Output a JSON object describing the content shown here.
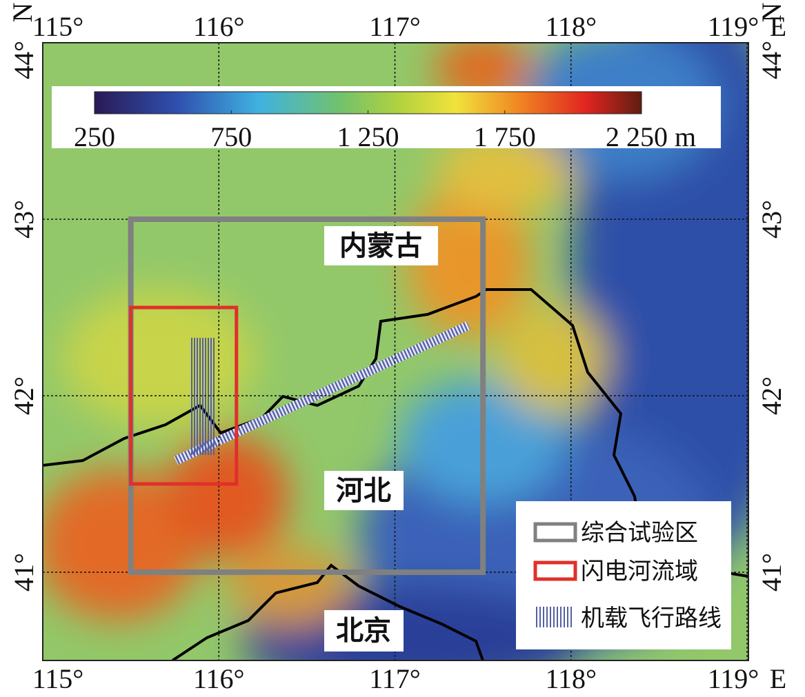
{
  "map": {
    "xlim": [
      115,
      119
    ],
    "ylim": [
      40.5,
      44
    ],
    "xticks": [
      {
        "value": 115,
        "label": "115°"
      },
      {
        "value": 116,
        "label": "116°"
      },
      {
        "value": 117,
        "label": "117°"
      },
      {
        "value": 118,
        "label": "118°"
      },
      {
        "value": 119,
        "label": "119°"
      }
    ],
    "yticks": [
      {
        "value": 41,
        "label": "41°"
      },
      {
        "value": 42,
        "label": "42°"
      },
      {
        "value": 43,
        "label": "43°"
      },
      {
        "value": 44,
        "label": "44°"
      }
    ],
    "compass": [
      "N",
      "N",
      "E",
      "E"
    ],
    "colorbar": {
      "lim": [
        250,
        2250
      ],
      "ticks": [
        250,
        750,
        {
          "value": 1250,
          "label": "1 250"
        },
        {
          "value": 1750,
          "label": "1 750"
        },
        {
          "value": 2250,
          "label": "2 250 m"
        }
      ]
    },
    "place_labels": [
      "内蒙古",
      "河北",
      "北京"
    ],
    "regions": [
      {
        "name": "综合试验区",
        "color": "#808080",
        "lon": [
          115.5,
          117.5
        ],
        "lat": [
          41,
          43
        ]
      },
      {
        "name": "闪电河流域",
        "color": "#e0302a",
        "lon": [
          115.5,
          116.1
        ],
        "lat": [
          41.5,
          42.5
        ]
      }
    ],
    "flight_legend": "机载飞行路线"
  }
}
